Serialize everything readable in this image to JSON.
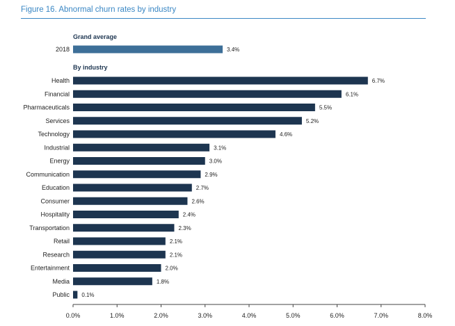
{
  "figure_title": "Figure 16. Abnormal churn rates by industry",
  "chart_data": {
    "type": "bar",
    "orientation": "horizontal",
    "title": "Figure 16. Abnormal churn rates by industry",
    "xlabel": "",
    "ylabel": "",
    "xlim": [
      0,
      8
    ],
    "x_ticks": [
      "0.0%",
      "1.0%",
      "2.0%",
      "3.0%",
      "4.0%",
      "5.0%",
      "6.0%",
      "7.0%",
      "8.0%"
    ],
    "grid": false,
    "groups": [
      {
        "heading": "Grand average",
        "color": "#3d6f98",
        "categories": [
          "2018"
        ],
        "values": [
          3.4
        ],
        "labels": [
          "3.4%"
        ]
      },
      {
        "heading": "By industry",
        "color": "#1d3550",
        "categories": [
          "Health",
          "Financial",
          "Pharmaceuticals",
          "Services",
          "Technology",
          "Industrial",
          "Energy",
          "Communication",
          "Education",
          "Consumer",
          "Hospitality",
          "Transportation",
          "Retail",
          "Research",
          "Entertainment",
          "Media",
          "Public"
        ],
        "values": [
          6.7,
          6.1,
          5.5,
          5.2,
          4.6,
          3.1,
          3.0,
          2.9,
          2.7,
          2.6,
          2.4,
          2.3,
          2.1,
          2.1,
          2.0,
          1.8,
          0.1
        ],
        "labels": [
          "6.7%",
          "6.1%",
          "5.5%",
          "5.2%",
          "4.6%",
          "3.1%",
          "3.0%",
          "2.9%",
          "2.7%",
          "2.6%",
          "2.4%",
          "2.3%",
          "2.1%",
          "2.1%",
          "2.0%",
          "1.8%",
          "0.1%"
        ]
      }
    ]
  }
}
